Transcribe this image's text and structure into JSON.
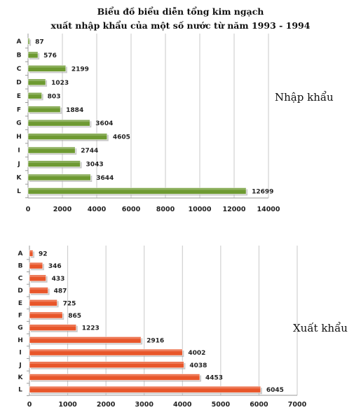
{
  "title_line1": "Biểu đồ biểu diễn tổng kim ngạch",
  "title_line2": "xuất nhập khẩu của một số nước từ năm 1993 - 1994",
  "chart_data": [
    {
      "type": "bar",
      "orientation": "horizontal",
      "side_label": "Nhập khẩu",
      "categories": [
        "A",
        "B",
        "C",
        "D",
        "E",
        "F",
        "G",
        "H",
        "I",
        "J",
        "K",
        "L"
      ],
      "values": [
        87,
        576,
        2199,
        1023,
        803,
        1884,
        3604,
        4605,
        2744,
        3043,
        3644,
        12699
      ],
      "xlim": [
        0,
        14000
      ],
      "xticks": [
        "0",
        "2000",
        "4000",
        "6000",
        "8000",
        "10000",
        "12000",
        "14000"
      ],
      "color": "#6e9a32",
      "grid": true
    },
    {
      "type": "bar",
      "orientation": "horizontal",
      "side_label": "Xuất khẩu",
      "categories": [
        "A",
        "B",
        "C",
        "D",
        "E",
        "F",
        "G",
        "H",
        "I",
        "J",
        "K",
        "L"
      ],
      "values": [
        92,
        346,
        433,
        487,
        725,
        865,
        1223,
        2916,
        4002,
        4038,
        4453,
        6045
      ],
      "xlim": [
        0,
        7000
      ],
      "xticks": [
        "0",
        "1000",
        "2000",
        "3000",
        "4000",
        "5000",
        "6000",
        "7000"
      ],
      "color": "#e8562a",
      "grid": true
    }
  ]
}
